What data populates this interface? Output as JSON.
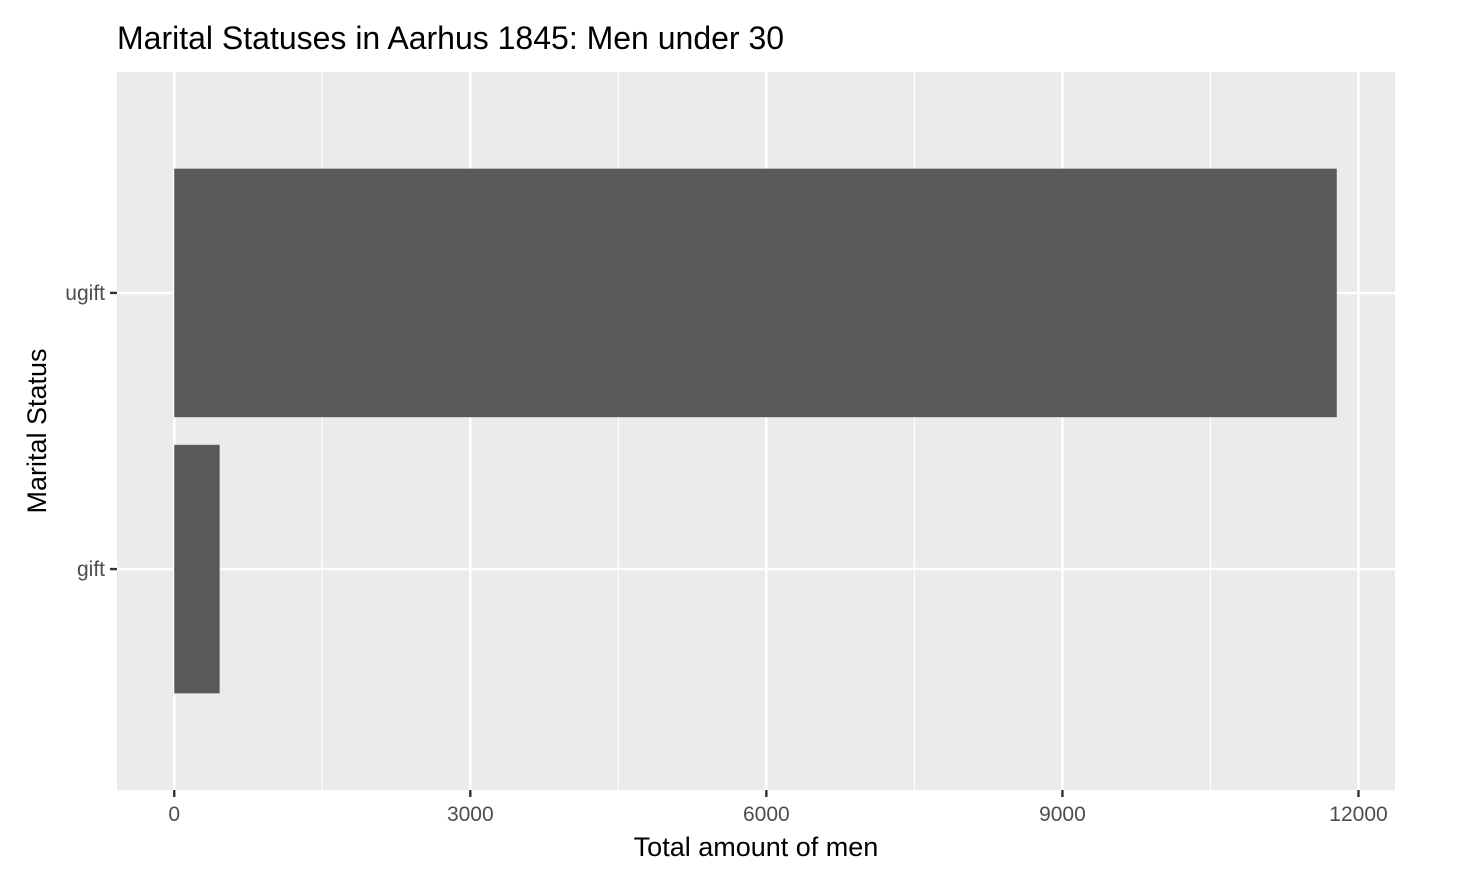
{
  "chart_data": {
    "type": "bar",
    "orientation": "horizontal",
    "title": "Marital Statuses in Aarhus 1845: Men under 30",
    "xlabel": "Total amount of men",
    "ylabel": "Marital Status",
    "categories": [
      "gift",
      "ugift"
    ],
    "values": [
      460,
      11780
    ],
    "xlim": [
      -580,
      12370
    ],
    "xticks": [
      0,
      3000,
      6000,
      9000,
      12000
    ],
    "xtick_labels": [
      "0",
      "3000",
      "6000",
      "9000",
      "12000"
    ],
    "grid": true,
    "legend": "none",
    "colors": {
      "bar": "#595959",
      "panel": "#ebebeb",
      "grid": "#ffffff"
    }
  }
}
